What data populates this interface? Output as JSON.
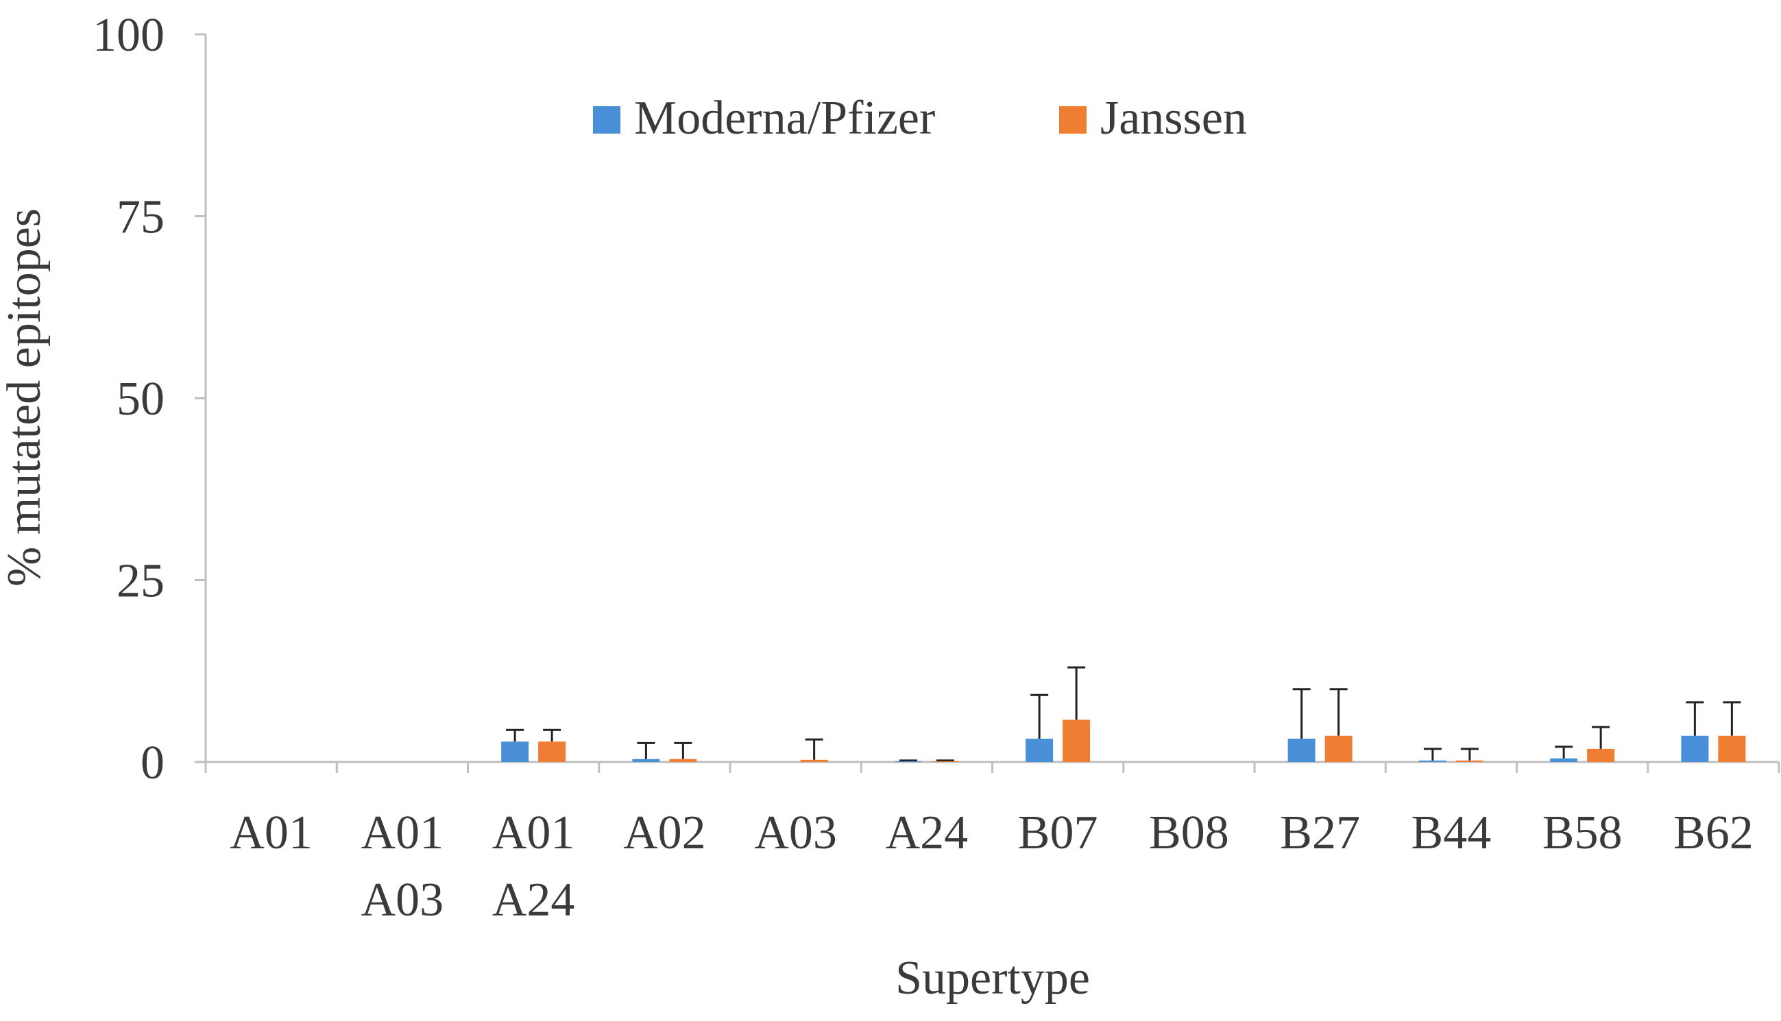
{
  "chart_data": {
    "type": "bar",
    "xlabel": "Supertype",
    "ylabel": "% mutated epitopes",
    "ylim": [
      0,
      100
    ],
    "yticks": [
      "0",
      "25",
      "50",
      "75",
      "100"
    ],
    "grid": false,
    "legend_position": "top",
    "categories": [
      [
        "A01"
      ],
      [
        "A01",
        "A03"
      ],
      [
        "A01",
        "A24"
      ],
      [
        "A02"
      ],
      [
        "A03"
      ],
      [
        "A24"
      ],
      [
        "B07"
      ],
      [
        "B08"
      ],
      [
        "B27"
      ],
      [
        "B44"
      ],
      [
        "B58"
      ],
      [
        "B62"
      ]
    ],
    "series": [
      {
        "name": "Moderna/Pfizer",
        "color": "#4a90d9",
        "values": [
          0,
          0,
          2.8,
          0.4,
          0,
          0.1,
          3.2,
          0,
          3.2,
          0.2,
          0.5,
          3.6
        ],
        "error": [
          0,
          0,
          1.6,
          2.2,
          0,
          0.1,
          6.0,
          0,
          6.8,
          1.6,
          1.6,
          4.6
        ]
      },
      {
        "name": "Janssen",
        "color": "#ef7d32",
        "values": [
          0,
          0,
          2.8,
          0.4,
          0.3,
          0.1,
          5.8,
          0,
          3.6,
          0.2,
          1.8,
          3.6
        ],
        "error": [
          0,
          0,
          1.6,
          2.2,
          2.8,
          0.1,
          7.2,
          0,
          6.4,
          1.6,
          3.0,
          4.6
        ]
      }
    ]
  }
}
